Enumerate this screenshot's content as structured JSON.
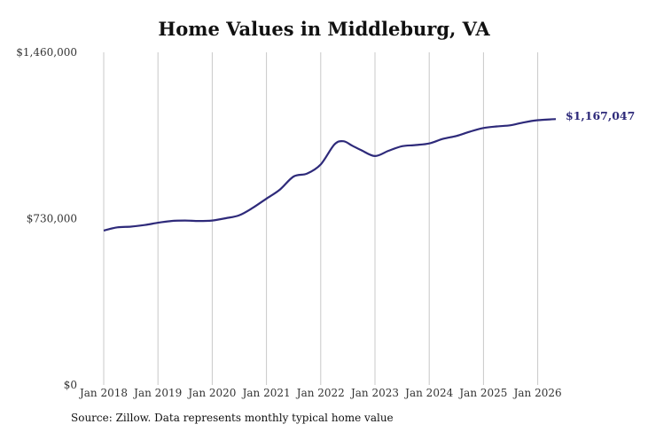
{
  "chart_data": {
    "type": "line",
    "title": "Home Values in Middleburg, VA",
    "xlabel": "",
    "ylabel": "",
    "ylim": [
      0,
      1460000
    ],
    "yticks": [
      {
        "value": 0,
        "label": "$0"
      },
      {
        "value": 730000,
        "label": "$730,000"
      },
      {
        "value": 1460000,
        "label": "$1,460,000"
      }
    ],
    "xticks": [
      "Jan 2018",
      "Jan 2019",
      "Jan 2020",
      "Jan 2021",
      "Jan 2022",
      "Jan 2023",
      "Jan 2024",
      "Jan 2025",
      "Jan 2026"
    ],
    "grid": "vertical",
    "series": [
      {
        "color": "#2e2a7a",
        "x": [
          "2018-01",
          "2018-04",
          "2018-07",
          "2018-10",
          "2019-01",
          "2019-04",
          "2019-07",
          "2019-10",
          "2020-01",
          "2020-04",
          "2020-07",
          "2020-10",
          "2021-01",
          "2021-04",
          "2021-07",
          "2021-10",
          "2022-01",
          "2022-04",
          "2022-06",
          "2022-08",
          "2022-10",
          "2023-01",
          "2023-04",
          "2023-07",
          "2023-10",
          "2024-01",
          "2024-04",
          "2024-07",
          "2024-10",
          "2025-01",
          "2025-04",
          "2025-07",
          "2025-10",
          "2026-01",
          "2026-05"
        ],
        "values": [
          678000,
          692000,
          695000,
          702000,
          712000,
          720000,
          722000,
          720000,
          722000,
          732000,
          745000,
          778000,
          818000,
          858000,
          915000,
          928000,
          968000,
          1055000,
          1070000,
          1050000,
          1030000,
          1005000,
          1028000,
          1048000,
          1053000,
          1060000,
          1080000,
          1093000,
          1112000,
          1128000,
          1135000,
          1140000,
          1153000,
          1162000,
          1167047
        ]
      }
    ],
    "end_label": "$1,167,047"
  },
  "source_note": "Source: Zillow. Data represents monthly typical home value"
}
